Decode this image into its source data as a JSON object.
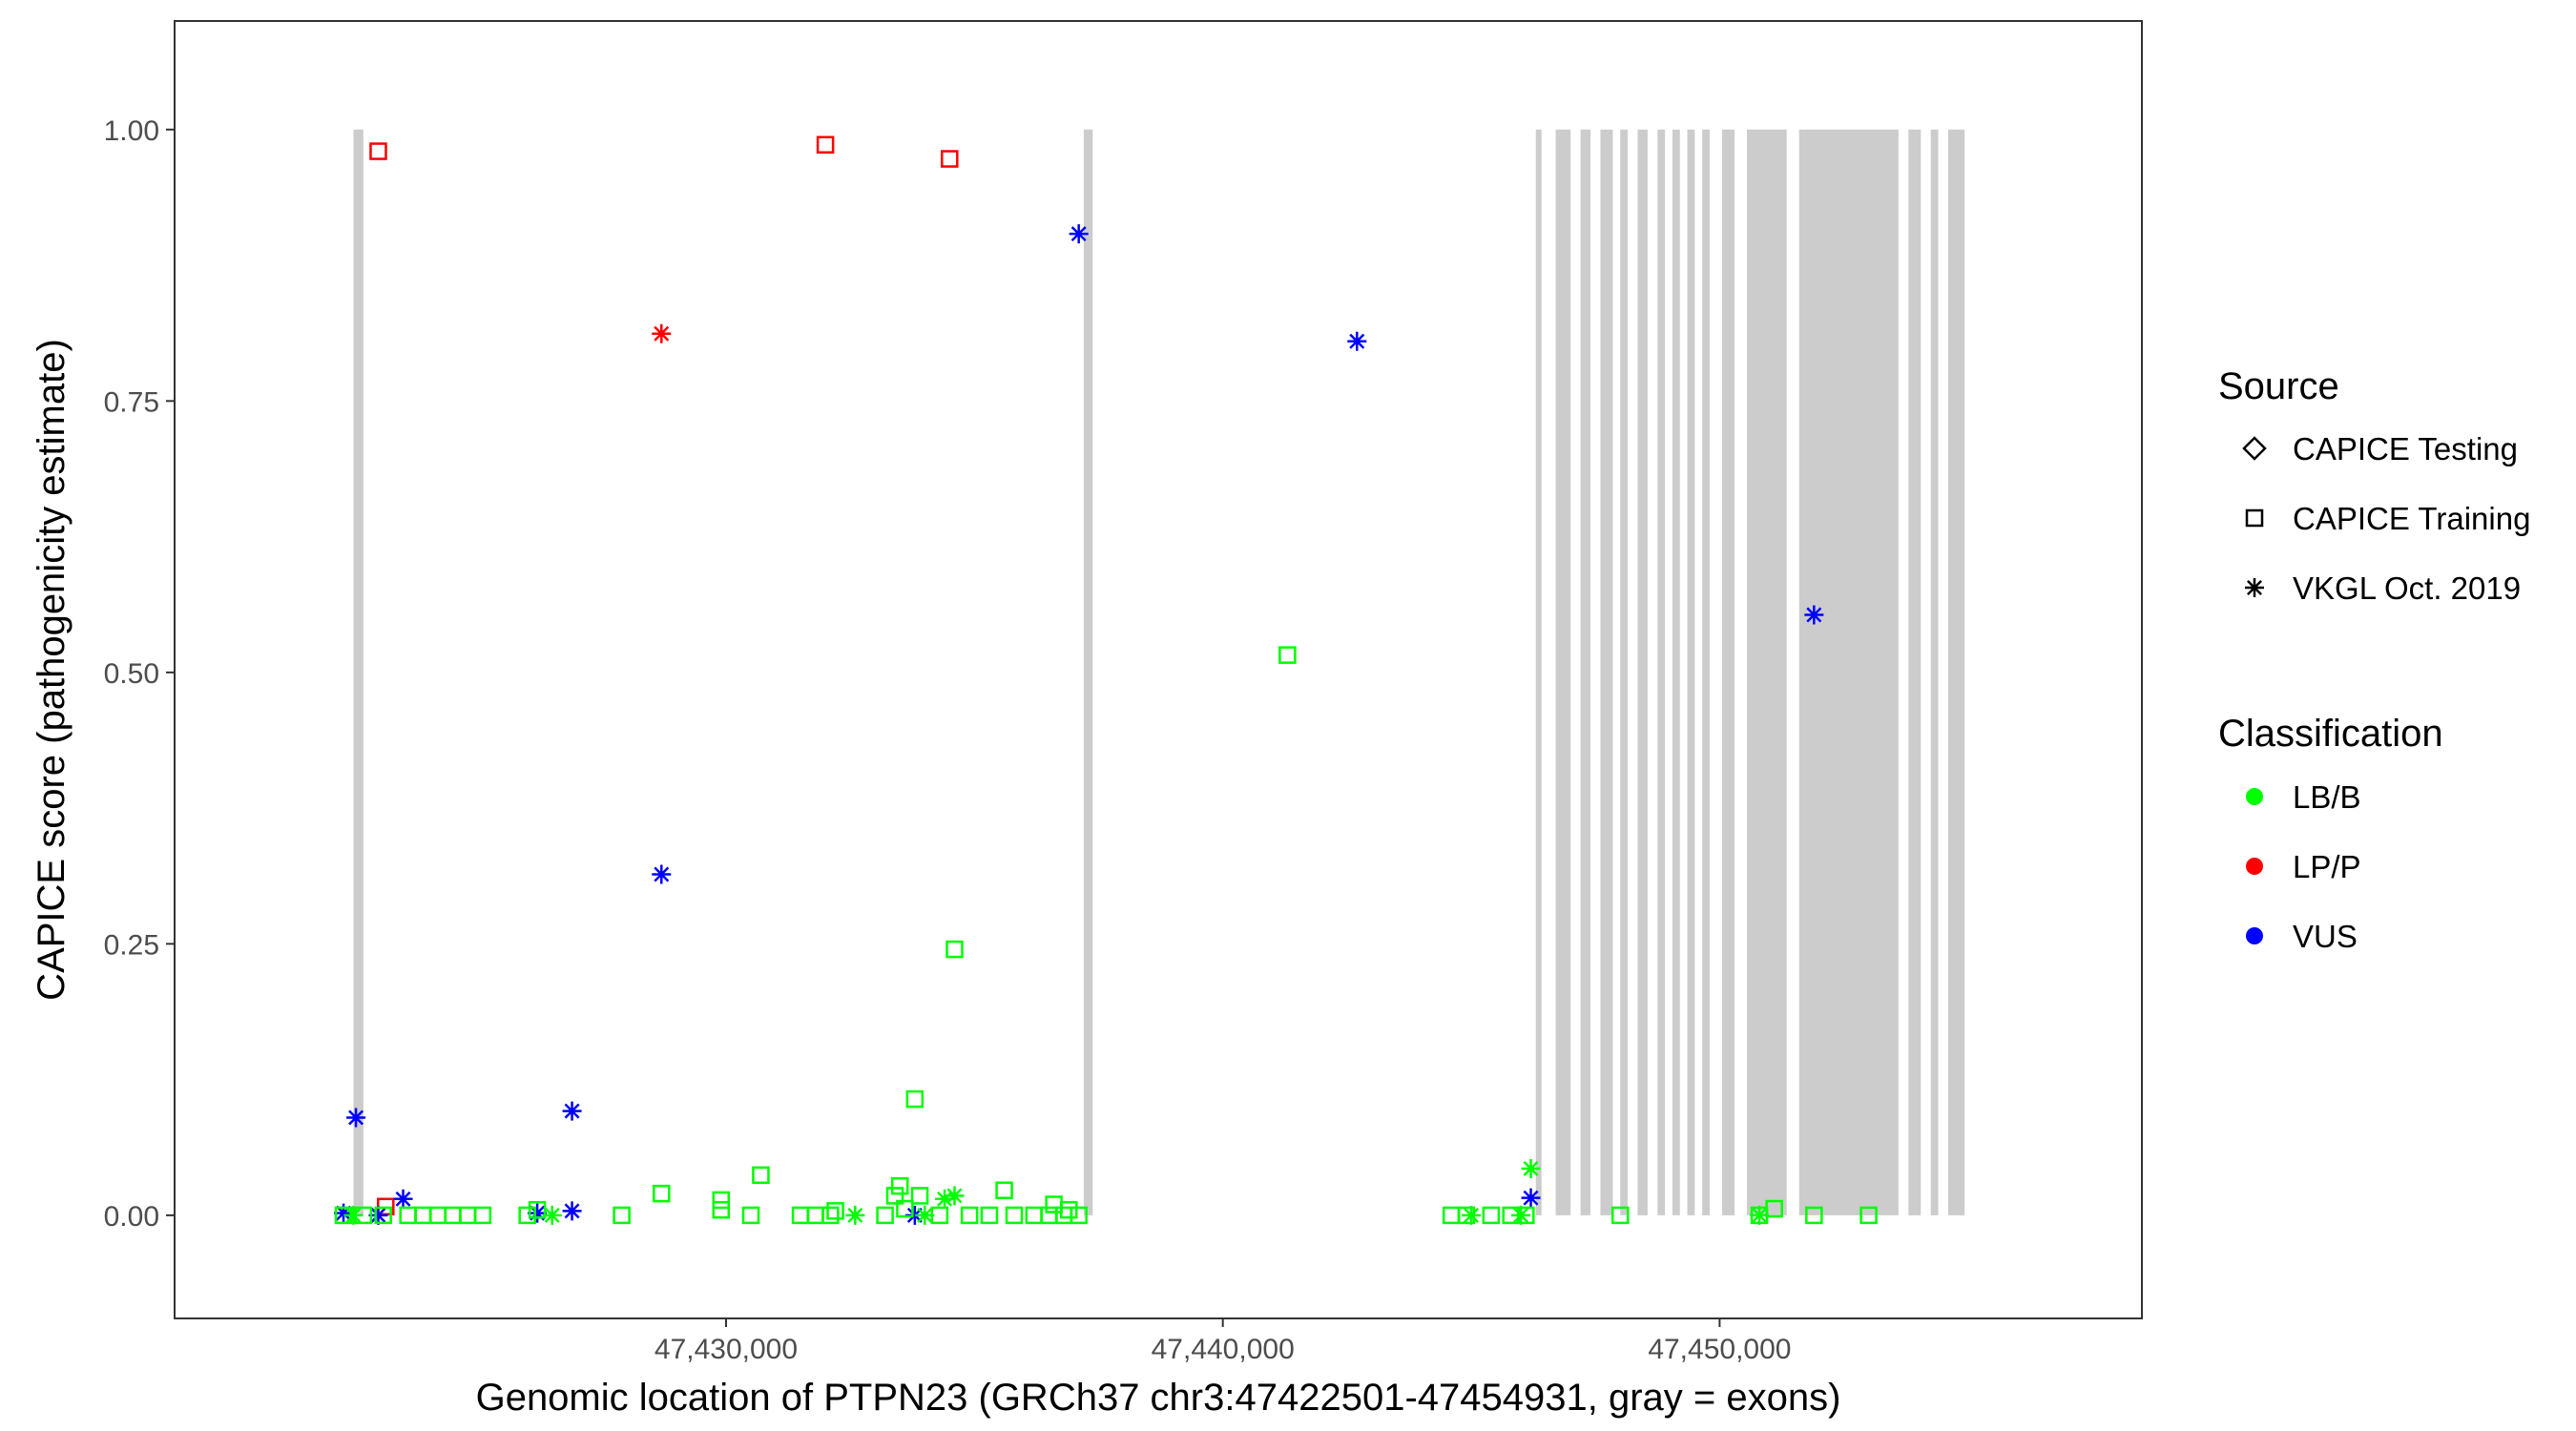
{
  "chart_data": {
    "type": "scatter",
    "xlabel": "Genomic location of PTPN23 (GRCh37 chr3:47422501-47454931, gray = exons)",
    "ylabel": "CAPICE score (pathogenicity estimate)",
    "xlim": [
      47418900,
      47458500
    ],
    "ylim": [
      -0.095,
      1.1
    ],
    "x_ticks": [
      47430000,
      47440000,
      47450000
    ],
    "x_tick_labels": [
      "47,430,000",
      "47,440,000",
      "47,450,000"
    ],
    "y_ticks": [
      0,
      0.25,
      0.5,
      0.75,
      1
    ],
    "y_tick_labels": [
      "0.00",
      "0.25",
      "0.50",
      "0.75",
      "1.00"
    ],
    "grid": false,
    "exons": [
      [
        47422501,
        47422700
      ],
      [
        47437200,
        47437380
      ],
      [
        47446300,
        47446400
      ],
      [
        47446700,
        47447000
      ],
      [
        47447200,
        47447400
      ],
      [
        47447600,
        47447850
      ],
      [
        47448000,
        47448150
      ],
      [
        47448350,
        47448550
      ],
      [
        47448750,
        47448900
      ],
      [
        47449050,
        47449200
      ],
      [
        47449350,
        47449500
      ],
      [
        47449650,
        47449800
      ],
      [
        47450050,
        47450300
      ],
      [
        47450550,
        47451350
      ],
      [
        47451600,
        47453600
      ],
      [
        47453800,
        47454050
      ],
      [
        47454250,
        47454400
      ],
      [
        47454600,
        47454931
      ]
    ],
    "exon_color": "#cccccc",
    "legends": {
      "source": {
        "title": "Source",
        "items": [
          {
            "label": "CAPICE Testing",
            "shape": "diamond"
          },
          {
            "label": "CAPICE Training",
            "shape": "square"
          },
          {
            "label": "VKGL Oct. 2019",
            "shape": "asterisk"
          }
        ]
      },
      "classification": {
        "title": "Classification",
        "items": [
          {
            "label": "LB/B",
            "color": "#00ff00"
          },
          {
            "label": "LP/P",
            "color": "#ff0000"
          },
          {
            "label": "VUS",
            "color": "#0000ff"
          }
        ]
      }
    },
    "series": [
      {
        "source": "CAPICE Training",
        "classification": "LP/P",
        "points": [
          [
            47423000,
            0.98
          ],
          [
            47432000,
            0.986
          ],
          [
            47434500,
            0.973
          ],
          [
            47423150,
            0.008
          ]
        ]
      },
      {
        "source": "VKGL Oct. 2019",
        "classification": "LP/P",
        "points": [
          [
            47428700,
            0.812
          ]
        ]
      },
      {
        "source": "VKGL Oct. 2019",
        "classification": "VUS",
        "points": [
          [
            47437100,
            0.904
          ],
          [
            47442700,
            0.805
          ],
          [
            47428700,
            0.314
          ],
          [
            47451900,
            0.553
          ],
          [
            47422550,
            0.09
          ],
          [
            47426900,
            0.096
          ],
          [
            47423500,
            0.015
          ],
          [
            47446200,
            0.016
          ],
          [
            47422300,
            0.002
          ],
          [
            47423000,
            0.0
          ],
          [
            47426200,
            0.002
          ],
          [
            47426900,
            0.004
          ],
          [
            47433800,
            0.0
          ]
        ]
      },
      {
        "source": "CAPICE Training",
        "classification": "LB/B",
        "points": [
          [
            47441300,
            0.516
          ],
          [
            47434600,
            0.245
          ],
          [
            47433800,
            0.107
          ],
          [
            47430700,
            0.037
          ],
          [
            47433500,
            0.027
          ],
          [
            47435600,
            0.023
          ],
          [
            47428700,
            0.02
          ],
          [
            47429900,
            0.014
          ],
          [
            47433400,
            0.018
          ],
          [
            47433900,
            0.018
          ],
          [
            47436600,
            0.01
          ],
          [
            47429900,
            0.005
          ],
          [
            47436900,
            0.005
          ],
          [
            47432200,
            0.004
          ],
          [
            47451100,
            0.006
          ],
          [
            47426200,
            0.005
          ],
          [
            47433600,
            0.006
          ],
          [
            47422300,
            0.0
          ],
          [
            47422700,
            0.0
          ],
          [
            47423100,
            0.0
          ],
          [
            47423600,
            0.0
          ],
          [
            47423900,
            0.0
          ],
          [
            47424200,
            0.0
          ],
          [
            47424500,
            0.0
          ],
          [
            47424800,
            0.0
          ],
          [
            47425100,
            0.0
          ],
          [
            47426000,
            0.0
          ],
          [
            47427900,
            0.0
          ],
          [
            47430500,
            0.0
          ],
          [
            47431500,
            0.0
          ],
          [
            47431800,
            0.0
          ],
          [
            47432100,
            0.0
          ],
          [
            47433200,
            0.0
          ],
          [
            47434300,
            0.0
          ],
          [
            47434900,
            0.0
          ],
          [
            47435300,
            0.0
          ],
          [
            47435800,
            0.0
          ],
          [
            47436200,
            0.0
          ],
          [
            47436500,
            0.0
          ],
          [
            47436800,
            0.0
          ],
          [
            47437100,
            0.0
          ],
          [
            47444600,
            0.0
          ],
          [
            47444900,
            0.0
          ],
          [
            47445400,
            0.0
          ],
          [
            47445800,
            0.0
          ],
          [
            47446100,
            0.0
          ],
          [
            47448000,
            0.0
          ],
          [
            47450800,
            0.0
          ],
          [
            47451900,
            0.0
          ],
          [
            47453000,
            0.0
          ]
        ]
      },
      {
        "source": "VKGL Oct. 2019",
        "classification": "LB/B",
        "points": [
          [
            47446200,
            0.043
          ],
          [
            47434600,
            0.018
          ],
          [
            47434400,
            0.015
          ],
          [
            47422500,
            0.0
          ],
          [
            47426500,
            0.0
          ],
          [
            47432600,
            0.0
          ],
          [
            47434000,
            0.0
          ],
          [
            47445000,
            0.0
          ],
          [
            47446000,
            0.0
          ],
          [
            47450800,
            0.0
          ]
        ]
      }
    ]
  }
}
